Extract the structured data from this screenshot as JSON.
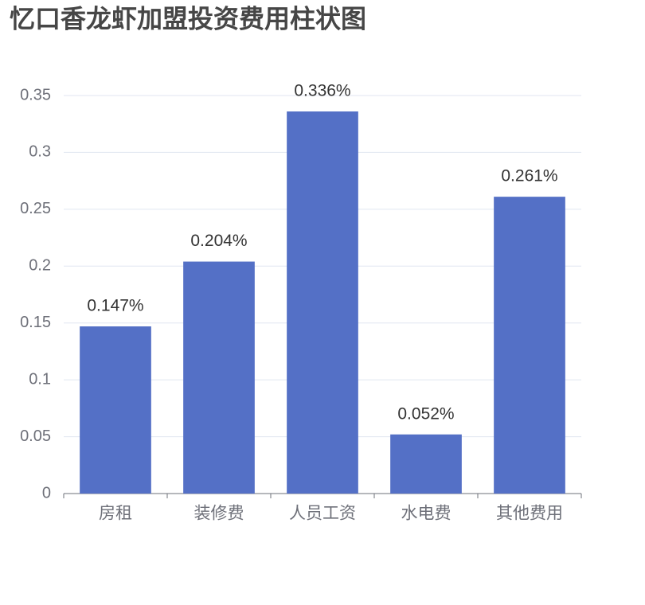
{
  "chart_data": {
    "type": "bar",
    "title": "忆口香龙虾加盟投资费用柱状图",
    "categories": [
      "房租",
      "装修费",
      "人员工资",
      "水电费",
      "其他费用"
    ],
    "values": [
      0.147,
      0.204,
      0.336,
      0.052,
      0.261
    ],
    "value_labels": [
      "0.147%",
      "0.204%",
      "0.336%",
      "0.052%",
      "0.261%"
    ],
    "color": "#5470c6",
    "ylim": [
      0,
      0.35
    ],
    "yticks": [
      0,
      0.05,
      0.1,
      0.15,
      0.2,
      0.25,
      0.3,
      0.35
    ],
    "grid": true
  }
}
